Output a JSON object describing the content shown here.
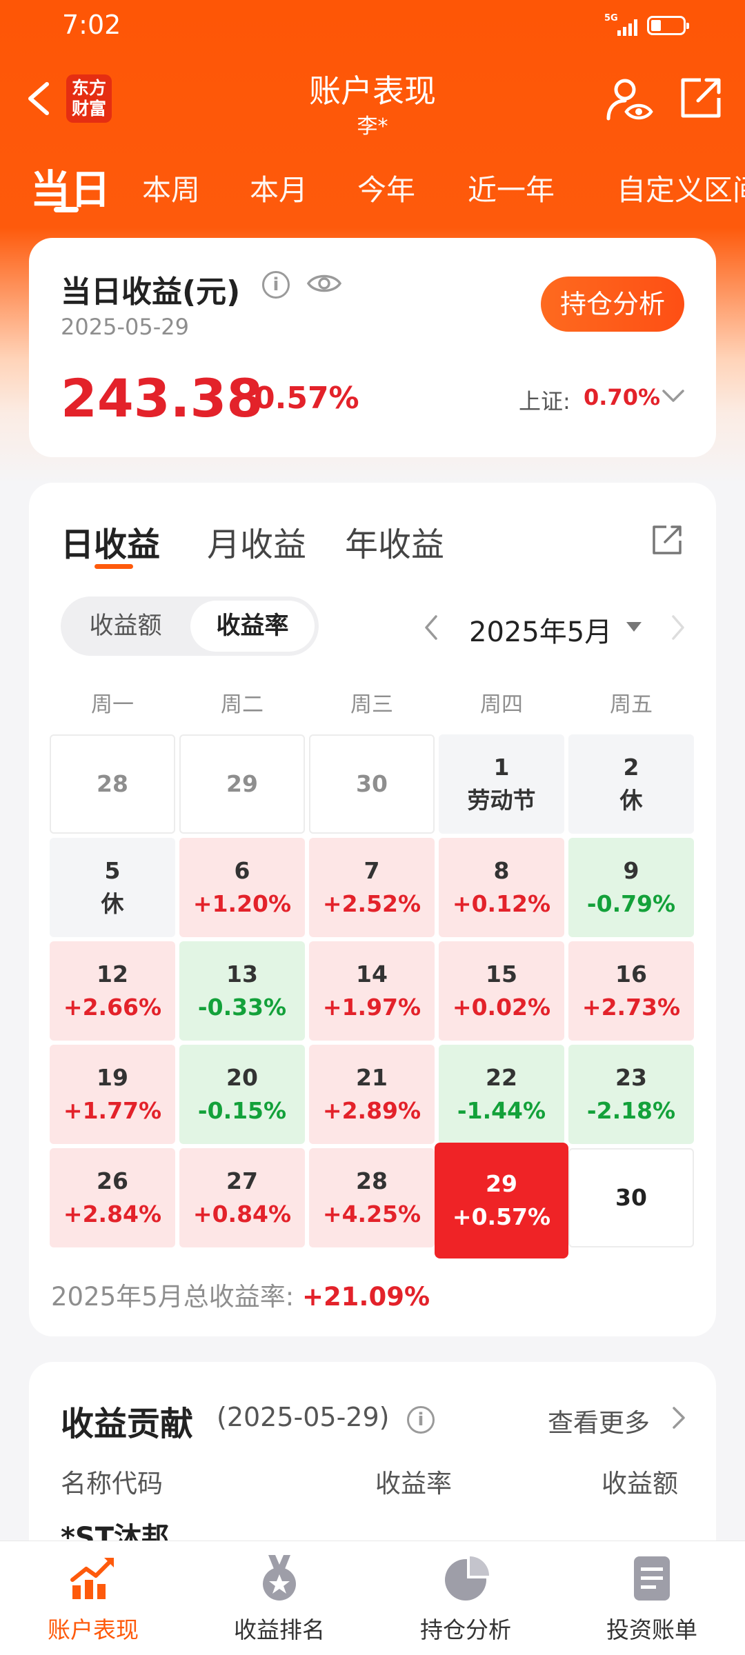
{
  "status_bar": {
    "time": "7:02",
    "network": "5G"
  },
  "nav": {
    "logo_line1": "东方",
    "logo_line2": "财富",
    "title": "账户表现",
    "subtitle": "李*"
  },
  "period_tabs": [
    {
      "label": "当日",
      "active": true
    },
    {
      "label": "本周"
    },
    {
      "label": "本月"
    },
    {
      "label": "今年"
    },
    {
      "label": "近一年"
    },
    {
      "label": "自定义区间"
    }
  ],
  "summary": {
    "title": "当日收益(元)",
    "date": "2025-05-29",
    "profit": "243.38",
    "profit_pct": "0.57%",
    "button": "持仓分析",
    "index_label": "上证:",
    "index_value": "0.70%"
  },
  "calendar": {
    "report_tabs": [
      {
        "label": "日收益",
        "active": true
      },
      {
        "label": "月收益"
      },
      {
        "label": "年收益"
      }
    ],
    "segment": [
      {
        "label": "收益额"
      },
      {
        "label": "收益率",
        "active": true
      }
    ],
    "month": "2025年5月",
    "weekdays": [
      "周一",
      "周二",
      "周三",
      "周四",
      "周五"
    ],
    "rows": [
      [
        {
          "day": "28",
          "kind": "out"
        },
        {
          "day": "29",
          "kind": "out"
        },
        {
          "day": "30",
          "kind": "out"
        },
        {
          "day": "1",
          "sub": "劳动节",
          "kind": "hol"
        },
        {
          "day": "2",
          "sub": "休",
          "kind": "hol"
        }
      ],
      [
        {
          "day": "5",
          "sub": "休",
          "kind": "hol"
        },
        {
          "day": "6",
          "sub": "+1.20%",
          "kind": "up"
        },
        {
          "day": "7",
          "sub": "+2.52%",
          "kind": "up"
        },
        {
          "day": "8",
          "sub": "+0.12%",
          "kind": "up"
        },
        {
          "day": "9",
          "sub": "-0.79%",
          "kind": "down"
        }
      ],
      [
        {
          "day": "12",
          "sub": "+2.66%",
          "kind": "up"
        },
        {
          "day": "13",
          "sub": "-0.33%",
          "kind": "down"
        },
        {
          "day": "14",
          "sub": "+1.97%",
          "kind": "up"
        },
        {
          "day": "15",
          "sub": "+0.02%",
          "kind": "up"
        },
        {
          "day": "16",
          "sub": "+2.73%",
          "kind": "up"
        }
      ],
      [
        {
          "day": "19",
          "sub": "+1.77%",
          "kind": "up"
        },
        {
          "day": "20",
          "sub": "-0.15%",
          "kind": "down"
        },
        {
          "day": "21",
          "sub": "+2.89%",
          "kind": "up"
        },
        {
          "day": "22",
          "sub": "-1.44%",
          "kind": "down"
        },
        {
          "day": "23",
          "sub": "-2.18%",
          "kind": "down"
        }
      ],
      [
        {
          "day": "26",
          "sub": "+2.84%",
          "kind": "up"
        },
        {
          "day": "27",
          "sub": "+0.84%",
          "kind": "up"
        },
        {
          "day": "28",
          "sub": "+4.25%",
          "kind": "up"
        },
        {
          "day": "29",
          "sub": "+0.57%",
          "kind": "sel"
        },
        {
          "day": "30",
          "kind": "plain"
        }
      ]
    ],
    "total_label": "2025年5月总收益率:",
    "total_value": "+21.09%"
  },
  "contribution": {
    "title": "收益贡献",
    "date": "(2025-05-29)",
    "more": "查看更多",
    "columns": [
      "名称代码",
      "收益率",
      "收益额"
    ],
    "first_row_partial": "*ST沐邦"
  },
  "bottom_nav": [
    {
      "label": "账户表现",
      "icon": "trend-chart-icon",
      "active": true
    },
    {
      "label": "收益排名",
      "icon": "medal-icon"
    },
    {
      "label": "持仓分析",
      "icon": "pie-chart-icon"
    },
    {
      "label": "投资账单",
      "icon": "bill-icon"
    }
  ],
  "colors": {
    "brand": "#fe5a0c",
    "up": "#e3222a",
    "down": "#13a13a",
    "selected": "#ef2326"
  }
}
